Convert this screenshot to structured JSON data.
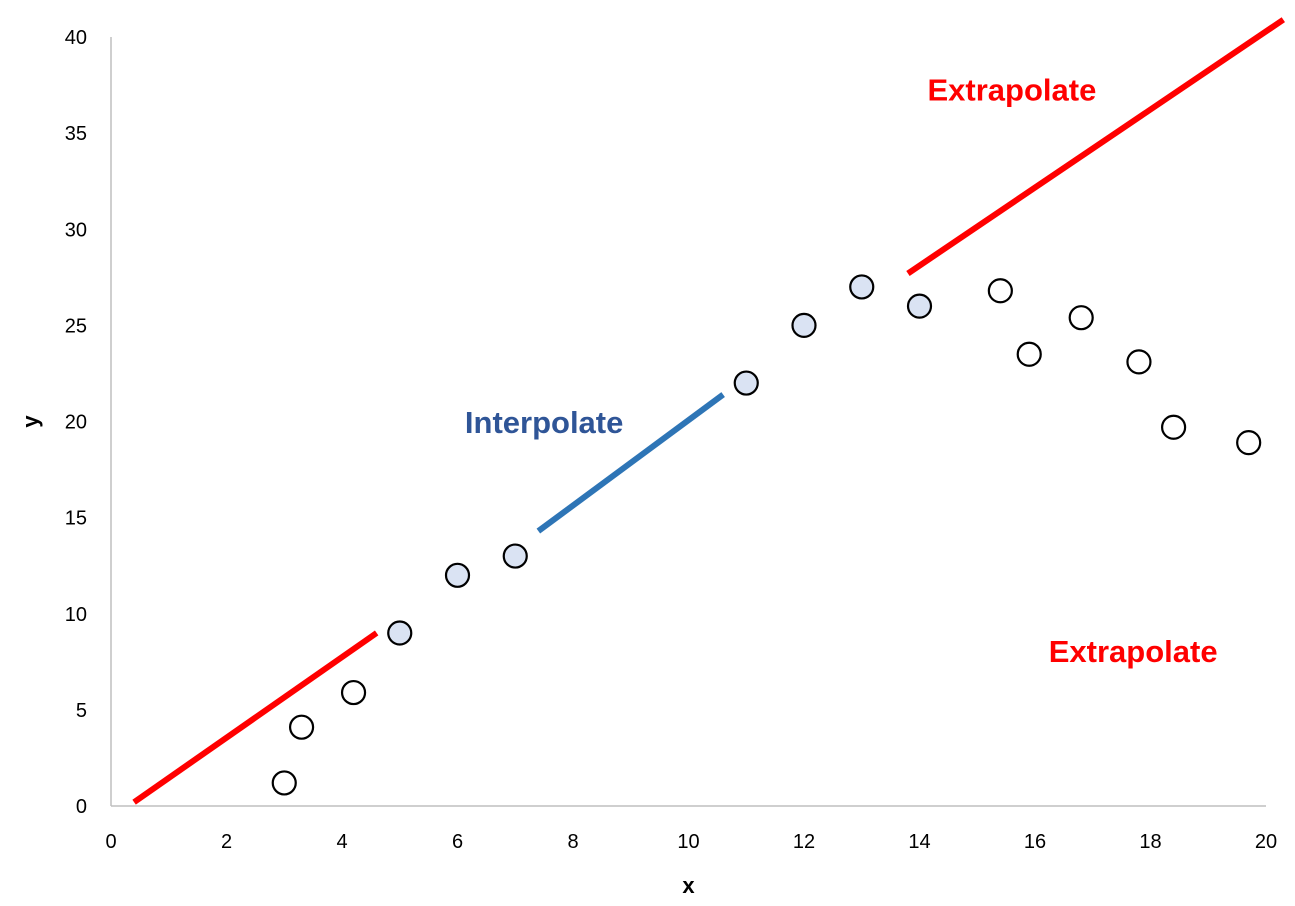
{
  "chart_data": {
    "type": "scatter",
    "title": "",
    "xlabel": "x",
    "ylabel": "y",
    "xlim": [
      0,
      20
    ],
    "ylim": [
      0,
      40
    ],
    "xticks": [
      0,
      2,
      4,
      6,
      8,
      10,
      12,
      14,
      16,
      18,
      20
    ],
    "yticks": [
      0,
      5,
      10,
      15,
      20,
      25,
      30,
      35,
      40
    ],
    "grid": false,
    "series": [
      {
        "style": "filled",
        "fill": "#dae3f3",
        "points": [
          {
            "x": 5,
            "y": 9
          },
          {
            "x": 6,
            "y": 12
          },
          {
            "x": 7,
            "y": 13
          },
          {
            "x": 11,
            "y": 22
          },
          {
            "x": 12,
            "y": 25
          },
          {
            "x": 13,
            "y": 27
          },
          {
            "x": 14,
            "y": 26
          }
        ]
      },
      {
        "style": "hollow",
        "fill": "#ffffff",
        "points": [
          {
            "x": 3.0,
            "y": 1.2
          },
          {
            "x": 3.3,
            "y": 4.1
          },
          {
            "x": 4.2,
            "y": 5.9
          },
          {
            "x": 15.4,
            "y": 26.8
          },
          {
            "x": 15.9,
            "y": 23.5
          },
          {
            "x": 16.8,
            "y": 25.4
          },
          {
            "x": 17.8,
            "y": 23.1
          },
          {
            "x": 18.4,
            "y": 19.7
          },
          {
            "x": 19.7,
            "y": 18.9
          }
        ]
      }
    ],
    "lines": [
      {
        "name": "extrapolate-low",
        "color": "#ff0000",
        "x": [
          0.4,
          4.6
        ],
        "y": [
          0.2,
          9.0
        ]
      },
      {
        "name": "interpolate",
        "color": "#2e75b6",
        "x": [
          7.4,
          10.6
        ],
        "y": [
          14.3,
          21.4
        ]
      },
      {
        "name": "extrapolate-high",
        "color": "#ff0000",
        "x": [
          13.8,
          20.3
        ],
        "y": [
          27.7,
          40.9
        ]
      }
    ],
    "annotations": [
      {
        "text": "Extrapolate",
        "color": "#ff0000",
        "x": 17.7,
        "y": 7.5
      },
      {
        "text": "Interpolate",
        "color": "#2f5597",
        "x": 7.5,
        "y": 19.4
      },
      {
        "text": "Extrapolate",
        "color": "#ff0000",
        "x": 15.6,
        "y": 36.7
      }
    ]
  }
}
